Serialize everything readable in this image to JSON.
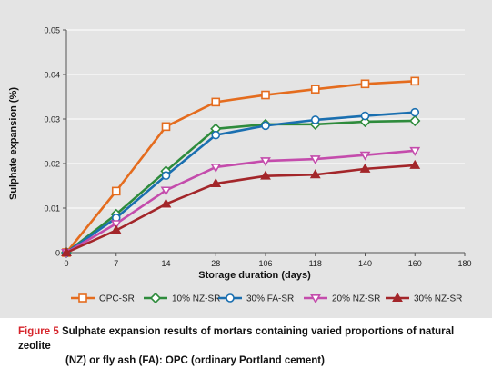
{
  "chart_data": {
    "type": "line",
    "title": "",
    "xlabel": "Storage duration (days)",
    "ylabel": "Sulphate expansion (%)",
    "x_tick_labels": [
      "0",
      "7",
      "14",
      "28",
      "106",
      "118",
      "140",
      "160",
      "180"
    ],
    "x": [
      "0",
      "7",
      "14",
      "28",
      "106",
      "118",
      "140",
      "160"
    ],
    "y_ticks": [
      "0",
      "0.01",
      "0.02",
      "0.03",
      "0.04",
      "0.05"
    ],
    "ylim": [
      0,
      0.05
    ],
    "grid": "horizontal",
    "legend_position": "bottom",
    "series": [
      {
        "name": "OPC-SR",
        "color": "#e46c1e",
        "marker": "square",
        "values": [
          0,
          0.0138,
          0.0283,
          0.0338,
          0.0354,
          0.0367,
          0.0379,
          0.0385
        ]
      },
      {
        "name": "10% NZ-SR",
        "color": "#2e8b3c",
        "marker": "diamond",
        "values": [
          0,
          0.0086,
          0.0183,
          0.0278,
          0.0288,
          0.0288,
          0.0294,
          0.0296
        ]
      },
      {
        "name": "30% FA-SR",
        "color": "#1a6fb0",
        "marker": "circle",
        "values": [
          0,
          0.0078,
          0.0173,
          0.0264,
          0.0285,
          0.0298,
          0.0307,
          0.0315
        ]
      },
      {
        "name": "20% NZ-SR",
        "color": "#c44cac",
        "marker": "triangle-down",
        "values": [
          0,
          0.0065,
          0.014,
          0.0192,
          0.0206,
          0.021,
          0.0219,
          0.0229
        ]
      },
      {
        "name": "30% NZ-SR",
        "color": "#a3262a",
        "marker": "triangle-up",
        "values": [
          0,
          0.005,
          0.0109,
          0.0155,
          0.0172,
          0.0175,
          0.0188,
          0.0196
        ]
      }
    ]
  },
  "caption": {
    "figure_label": "Figure 5",
    "text_line1": "Sulphate expansion results of mortars containing varied proportions of natural zeolite",
    "text_line2": "(NZ) or fly ash (FA): OPC (ordinary Portland cement)"
  }
}
